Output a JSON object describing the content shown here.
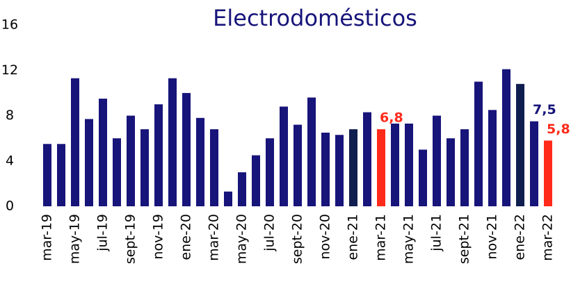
{
  "chart_data": {
    "type": "bar",
    "title": "Electrodomésticos",
    "categories": [
      "mar-19",
      null,
      "may-19",
      null,
      "jul-19",
      null,
      "sept-19",
      null,
      "nov-19",
      null,
      "ene-20",
      null,
      "mar-20",
      null,
      "may-20",
      null,
      "jul-20",
      null,
      "sept-20",
      null,
      "nov-20",
      null,
      "ene-21",
      null,
      "mar-21",
      null,
      "may-21",
      null,
      "jul-21",
      null,
      "sept-21",
      null,
      "nov-21",
      null,
      "ene-22",
      null,
      "mar-22"
    ],
    "values": [
      5.5,
      5.5,
      11.3,
      7.7,
      9.5,
      6.0,
      8.0,
      6.8,
      9.0,
      11.3,
      10.0,
      7.8,
      6.8,
      1.3,
      3.0,
      4.5,
      6.0,
      8.8,
      7.2,
      9.6,
      6.5,
      6.3,
      6.8,
      8.3,
      6.8,
      7.3,
      7.3,
      5.0,
      8.0,
      6.0,
      6.8,
      11.0,
      8.5,
      12.1,
      10.8,
      7.5,
      5.8
    ],
    "value_labels": [
      null,
      null,
      null,
      null,
      null,
      null,
      null,
      null,
      null,
      null,
      null,
      null,
      null,
      null,
      null,
      null,
      null,
      null,
      null,
      null,
      null,
      null,
      null,
      null,
      "6,8",
      null,
      null,
      null,
      null,
      null,
      null,
      null,
      null,
      null,
      null,
      "7,5",
      "5,8"
    ],
    "colors": [
      "#17147a",
      "#17147a",
      "#17147a",
      "#17147a",
      "#17147a",
      "#17147a",
      "#17147a",
      "#17147a",
      "#17147a",
      "#17147a",
      "#17147a",
      "#17147a",
      "#17147a",
      "#17147a",
      "#17147a",
      "#17147a",
      "#17147a",
      "#17147a",
      "#17147a",
      "#17147a",
      "#17147a",
      "#17147a",
      "#0f1e4e",
      "#17147a",
      "#ff2a1a",
      "#17147a",
      "#17147a",
      "#17147a",
      "#17147a",
      "#17147a",
      "#17147a",
      "#17147a",
      "#17147a",
      "#17147a",
      "#0f1e4e",
      "#17147a",
      "#ff2a1a"
    ],
    "ylim": [
      0,
      16
    ],
    "yticks": [
      0,
      4,
      8,
      12,
      16
    ],
    "grid": false
  }
}
